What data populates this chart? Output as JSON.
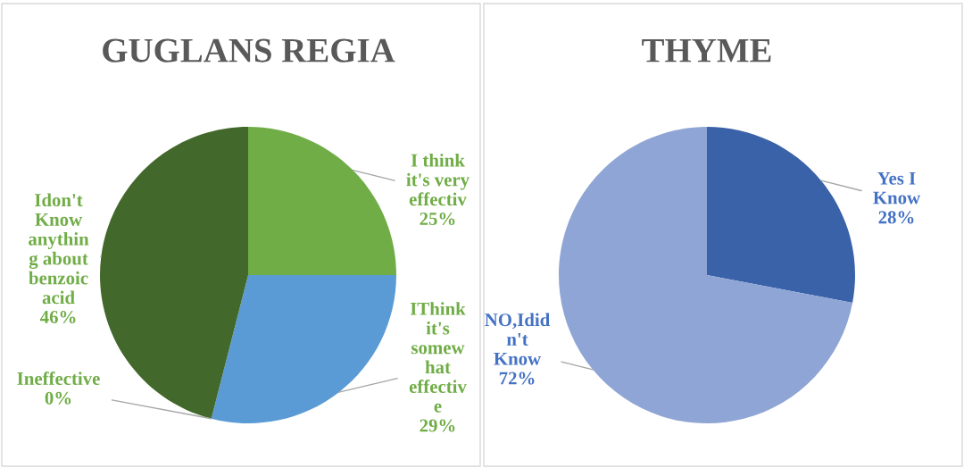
{
  "chart_data": [
    {
      "type": "pie",
      "title": "GUGLANS REGIA",
      "categories": [
        "I think\nit's very\neffectiv",
        "IThink\nit's\nsomew\nhat\neffectiv\ne",
        "Ineffective",
        "Idon't\nKnow\nanythin\ng about\nbenzoic\nacid"
      ],
      "values": [
        25,
        29,
        0,
        46
      ],
      "colors": [
        "#70ad47",
        "#5b9bd5",
        "#a5a5a5",
        "#43682b"
      ],
      "value_labels": [
        "25%",
        "29%",
        "0%",
        "46%"
      ]
    },
    {
      "type": "pie",
      "title": "THYME",
      "categories": [
        "Yes I\nKnow",
        "NO,Idid\nn't\nKnow"
      ],
      "values": [
        28,
        72
      ],
      "colors": [
        "#3a62a8",
        "#8fa5d5"
      ],
      "value_labels": [
        "28%",
        "72%"
      ]
    }
  ]
}
